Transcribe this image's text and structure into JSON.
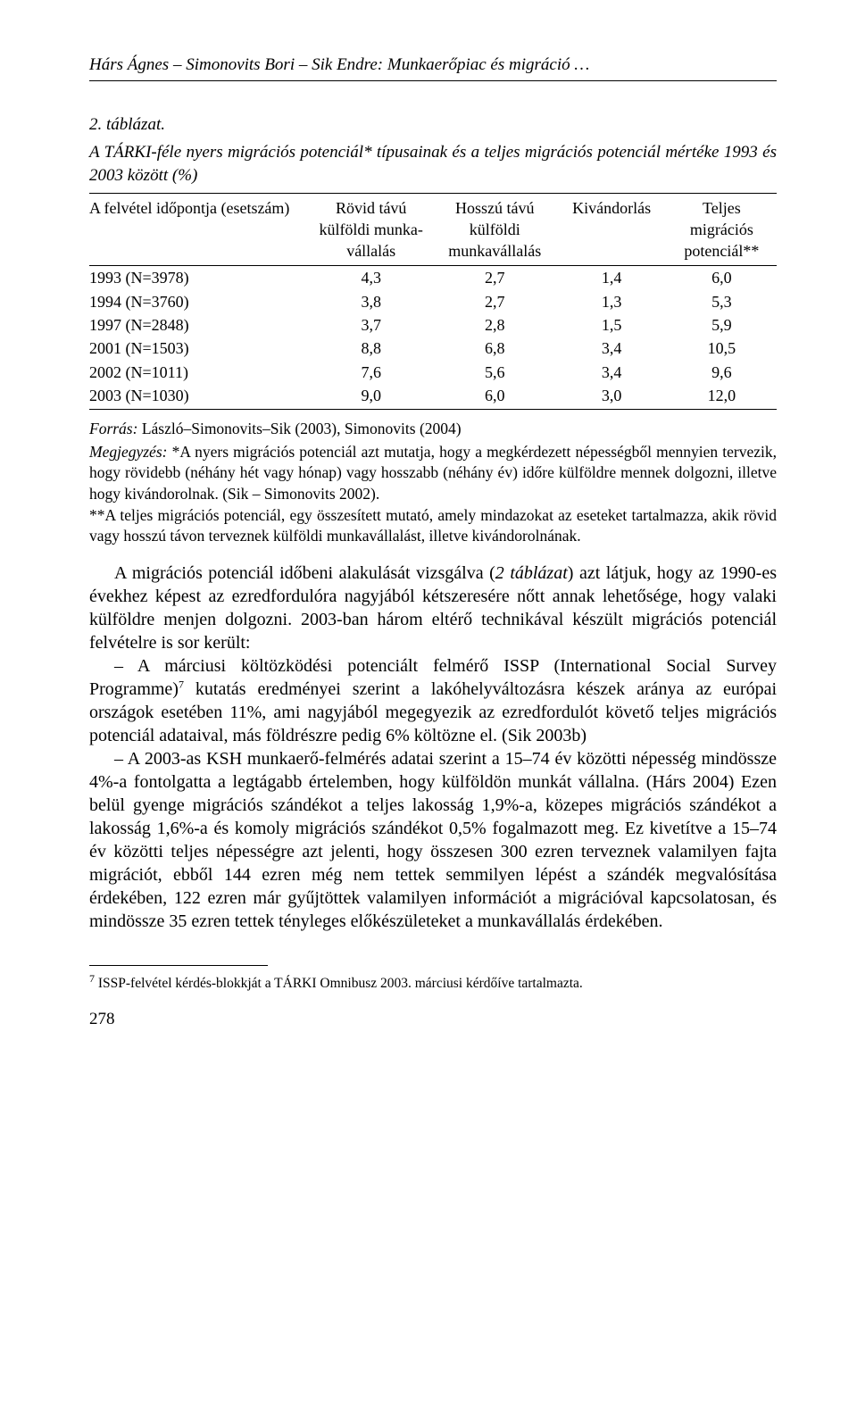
{
  "running_head": {
    "left": "Hárs Ágnes – Simonovits Bori – Sik Endre: Munkaerőpiac és migráció …",
    "right": ""
  },
  "caption_label": "2. táblázat.",
  "caption_title": "A TÁRKI-féle nyers migrációs potenciál* típusainak és a teljes migrációs potenciál mértéke 1993 és 2003 között (%)",
  "table": {
    "columns": [
      "A felvétel időpontja (esetszám)",
      "Rövid távú külföldi munka-vállalás",
      "Hosszú távú külföldi munkavállalás",
      "Kivándorlás",
      "Teljes migrációs potenciál**"
    ],
    "rows": [
      [
        "1993 (N=3978)",
        "4,3",
        "2,7",
        "1,4",
        "6,0"
      ],
      [
        "1994 (N=3760)",
        "3,8",
        "2,7",
        "1,3",
        "5,3"
      ],
      [
        "1997 (N=2848)",
        "3,7",
        "2,8",
        "1,5",
        "5,9"
      ],
      [
        "2001 (N=1503)",
        "8,8",
        "6,8",
        "3,4",
        "10,5"
      ],
      [
        "2002 (N=1011)",
        "7,6",
        "5,6",
        "3,4",
        "9,6"
      ],
      [
        "2003 (N=1030)",
        "9,0",
        "6,0",
        "3,0",
        "12,0"
      ]
    ],
    "col_widths": [
      "32%",
      "18%",
      "18%",
      "16%",
      "16%"
    ]
  },
  "source_label": "Forrás:",
  "source_text": " László–Simonovits–Sik (2003), Simonovits (2004)",
  "note_label": "Megjegyzés:",
  "note1": " *A nyers migrációs potenciál azt mutatja, hogy a megkérdezett népességből mennyien tervezik, hogy rövidebb (néhány hét vagy hónap) vagy hosszabb (néhány év) időre külföldre mennek dolgozni, illetve hogy kivándorolnak. (Sik – Simonovits 2002).",
  "note2": "**A teljes migrációs potenciál, egy összesített mutató, amely mindazokat az eseteket tartalmazza, akik rövid vagy hosszú távon terveznek külföldi munkavállalást, illetve kivándorolnának.",
  "p1a": "A migrációs potenciál időbeni alakulását vizsgálva (",
  "p1_it": "2 táblázat",
  "p1b": ") azt látjuk, hogy az 1990-es évekhez képest az ezredfordulóra nagyjából kétszeresére nőtt annak lehetősége, hogy valaki külföldre menjen dolgozni. 2003-ban három eltérő technikával készült migrációs potenciál felvételre is sor került:",
  "p2a": "– A márciusi költözködési potenciált felmérő ISSP (International Social Survey Programme)",
  "p2_sup": "7",
  "p2b": " kutatás eredményei szerint a lakóhelyváltozásra készek aránya az európai országok esetében 11%, ami nagyjából megegyezik az ezredfordulót követő teljes migrációs potenciál adataival, más földrészre pedig 6% költözne el. (Sik 2003b)",
  "p3": "– A 2003-as KSH munkaerő-felmérés adatai szerint a 15–74 év közötti népesség mindössze 4%-a fontolgatta a legtágabb értelemben, hogy külföldön munkát vállalna. (Hárs 2004) Ezen belül gyenge migrációs szándékot a teljes lakosság 1,9%-a, közepes migrációs szándékot a lakosság 1,6%-a és komoly migrációs szándékot 0,5% fogalmazott meg. Ez kivetítve a 15–74 év közötti teljes népességre azt jelenti, hogy összesen 300 ezren terveznek valamilyen fajta migrációt, ebből 144 ezren még nem tettek semmilyen lépést a szándék megvalósítása érdekében, 122 ezren már gyűjtöttek valamilyen információt a migrációval kapcsolatosan, és mindössze 35 ezren tettek tényleges előkészületeket a munkavállalás érdekében.",
  "footnote_num": "7",
  "footnote_text": " ISSP-felvétel kérdés-blokkját a TÁRKI Omnibusz 2003. márciusi kérdőíve tartalmazta.",
  "page_number": "278"
}
